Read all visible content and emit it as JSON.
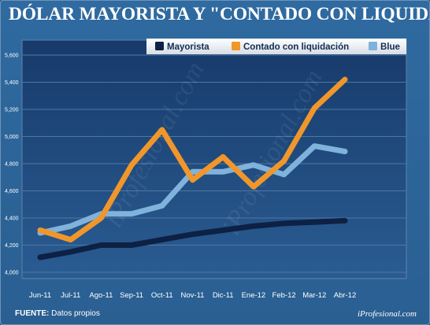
{
  "title": "DÓLAR MAYORISTA Y \"CONTADO CON LIQUIDACIÓN\"",
  "source_label": "FUENTE:",
  "source_text": "Datos propios",
  "brand": "iProfesional.com",
  "watermark": "iProfesional.com",
  "colors": {
    "Mayorista": "#0d2144",
    "Contado con liquidación": "#f0962b",
    "Blue": "#7fb3dc"
  },
  "chart_data": {
    "type": "line",
    "title": "DÓLAR MAYORISTA Y \"CONTADO CON LIQUIDACIÓN\"",
    "categories": [
      "Jun-11",
      "Jul-11",
      "Ago-11",
      "Sep-11",
      "Oct-11",
      "Nov-11",
      "Dic-11",
      "Ene-12",
      "Feb-12",
      "Mar-12",
      "Abr-12"
    ],
    "yticks": [
      "4,000",
      "4,200",
      "4,400",
      "4,600",
      "4,800",
      "5,000",
      "5,200",
      "5,400",
      "5,600"
    ],
    "ylim": [
      4.0,
      5.6
    ],
    "grid": true,
    "legend": "top-right",
    "series": [
      {
        "name": "Mayorista",
        "values": [
          4.11,
          4.15,
          4.2,
          4.2,
          4.24,
          4.28,
          4.31,
          4.34,
          4.36,
          4.37,
          4.38
        ]
      },
      {
        "name": "Contado con liquidación",
        "values": [
          4.31,
          4.24,
          4.4,
          4.79,
          5.05,
          4.68,
          4.85,
          4.63,
          4.82,
          5.21,
          5.42
        ]
      },
      {
        "name": "Blue",
        "values": [
          4.29,
          4.34,
          4.43,
          4.43,
          4.49,
          4.74,
          4.74,
          4.79,
          4.72,
          4.93,
          4.89
        ]
      }
    ]
  }
}
